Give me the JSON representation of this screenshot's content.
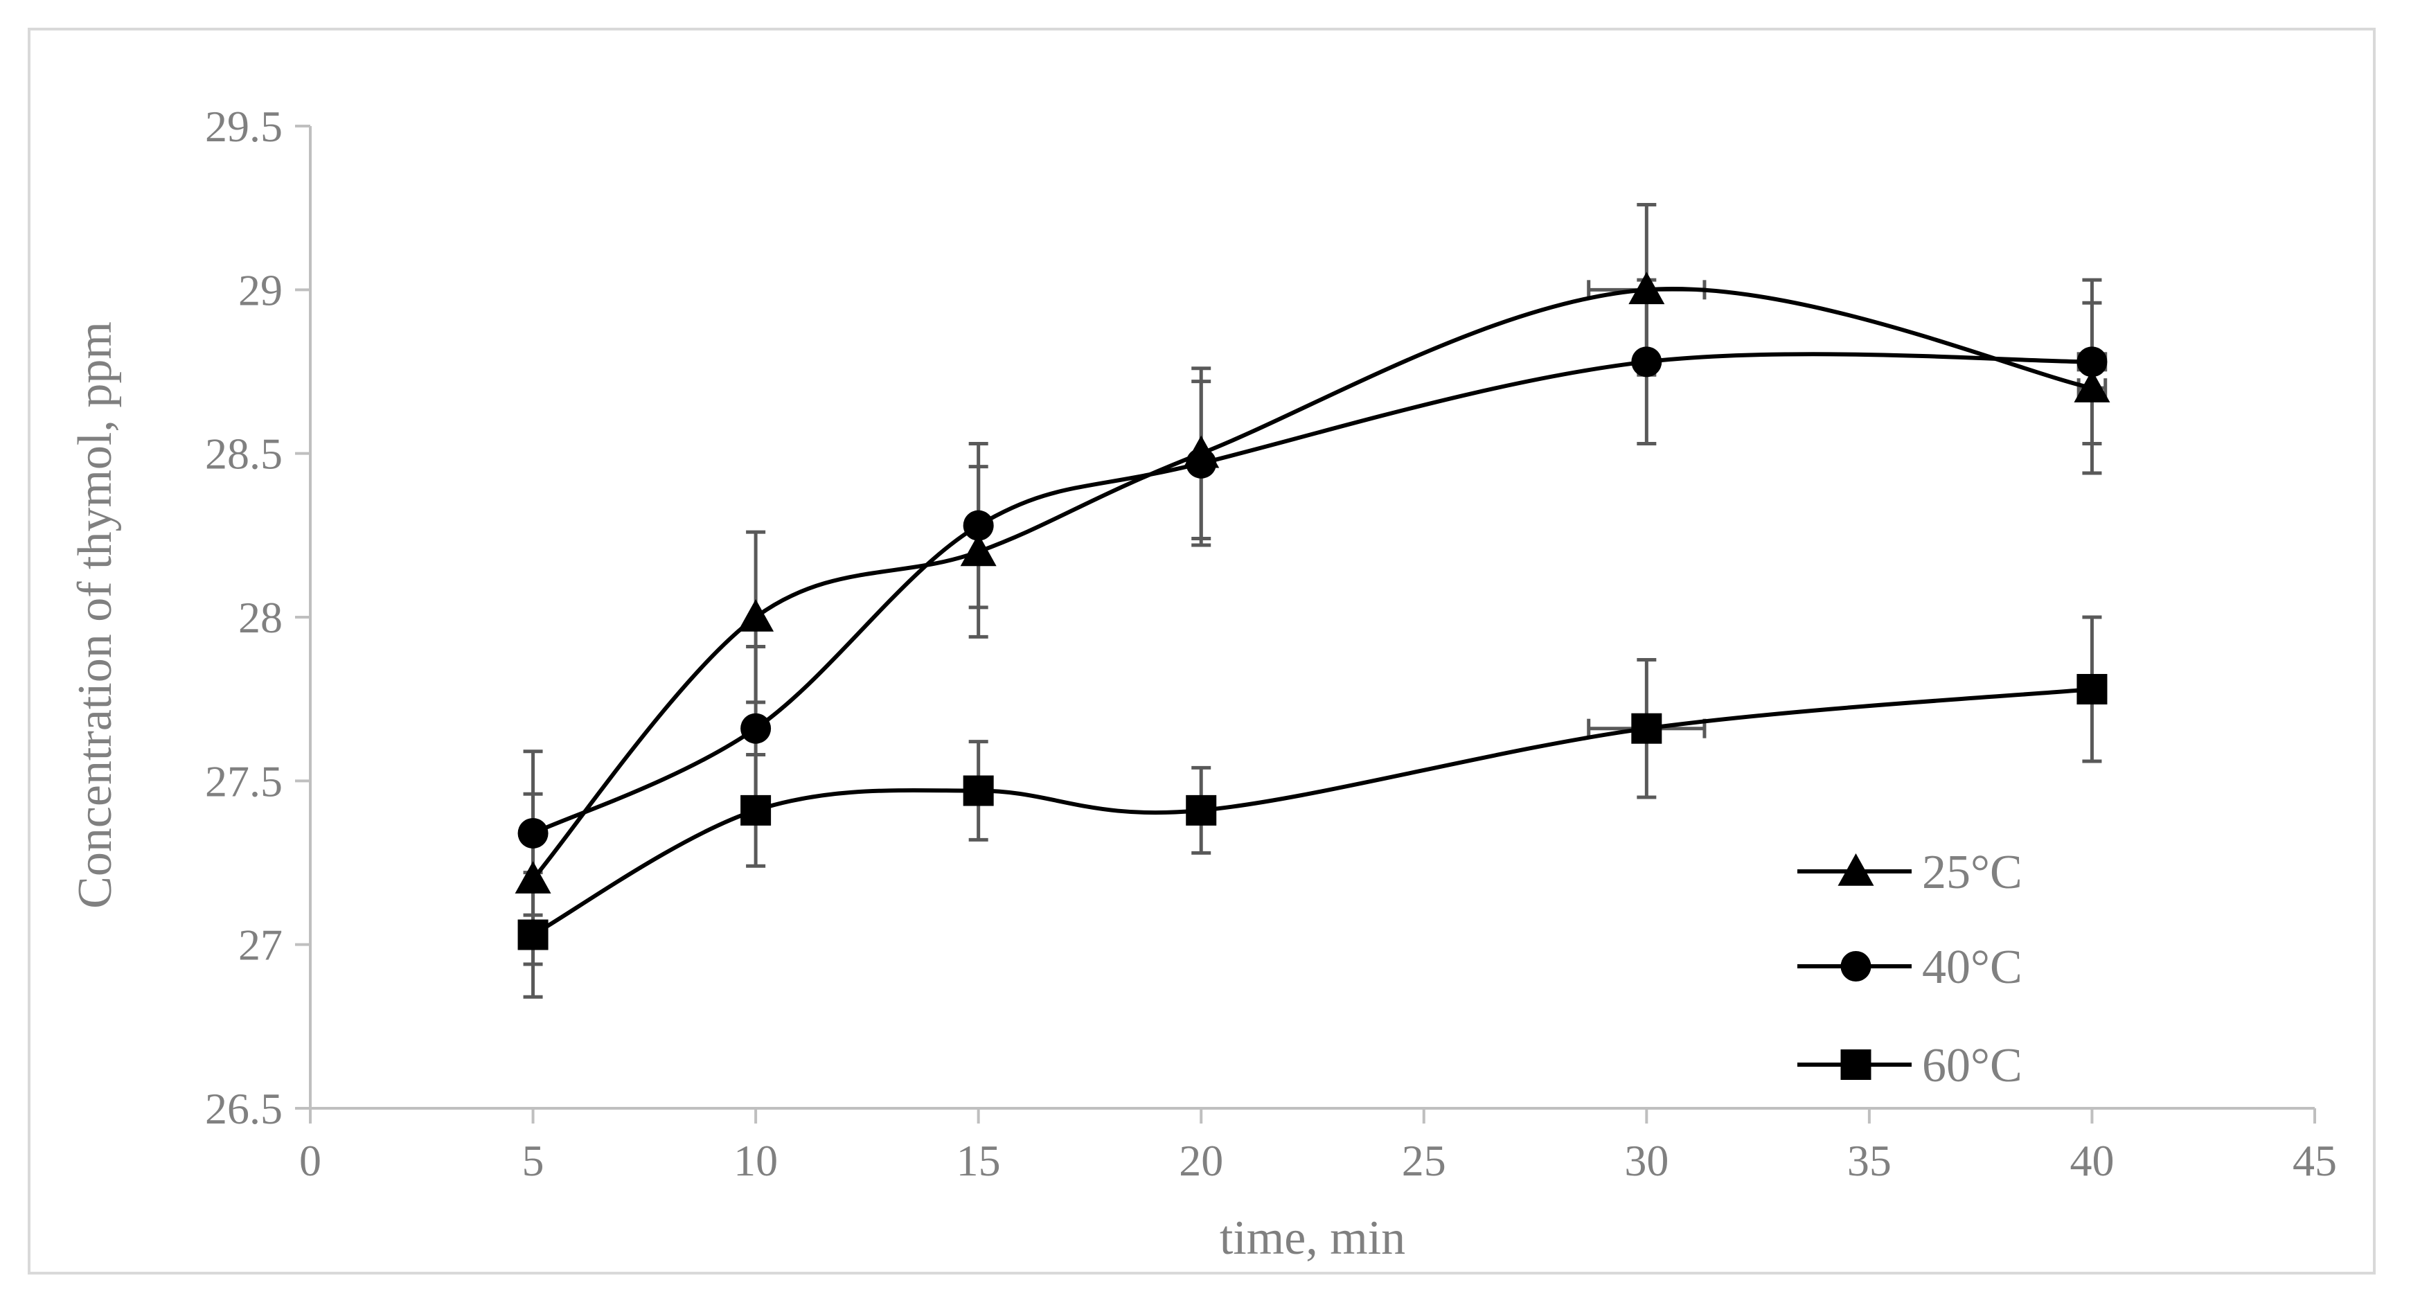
{
  "chart_data": {
    "type": "line",
    "title": "",
    "xlabel": "time, min",
    "ylabel": "Concentration of thymol, ppm",
    "xlim": [
      0,
      45
    ],
    "ylim": [
      26.5,
      29.5
    ],
    "xticks": [
      0,
      5,
      10,
      15,
      20,
      25,
      30,
      35,
      40,
      45
    ],
    "yticks": [
      26.5,
      27,
      27.5,
      28,
      28.5,
      29,
      29.5
    ],
    "xtick_labels": [
      "0",
      "5",
      "10",
      "15",
      "20",
      "25",
      "30",
      "35",
      "40",
      "45"
    ],
    "ytick_labels": [
      "26.5",
      "27",
      "27.5",
      "28",
      "28.5",
      "29",
      "29.5"
    ],
    "grid": false,
    "legend_position": "bottom-right",
    "series": [
      {
        "name": "25°C",
        "marker": "triangle",
        "color": "#000000",
        "x": [
          5,
          10,
          15,
          20,
          30,
          40
        ],
        "values": [
          27.2,
          28.0,
          28.2,
          28.5,
          29.0,
          28.7
        ],
        "y_error": [
          0.26,
          0.26,
          0.26,
          0.26,
          0.26,
          0.26
        ],
        "x_error": [
          0,
          0,
          0,
          0,
          1.3,
          0.3
        ]
      },
      {
        "name": "40°C",
        "marker": "circle",
        "color": "#000000",
        "x": [
          5,
          10,
          15,
          20,
          30,
          40
        ],
        "values": [
          27.34,
          27.66,
          28.28,
          28.47,
          28.78,
          28.78
        ],
        "y_error": [
          0.25,
          0.25,
          0.25,
          0.25,
          0.25,
          0.25
        ],
        "x_error": [
          0,
          0,
          0,
          0,
          0,
          0.3
        ]
      },
      {
        "name": "60°C",
        "marker": "square",
        "color": "#000000",
        "x": [
          5,
          10,
          15,
          20,
          30,
          40
        ],
        "values": [
          27.03,
          27.41,
          27.47,
          27.41,
          27.66,
          27.78
        ],
        "y_error": [
          0.19,
          0.17,
          0.15,
          0.13,
          0.21,
          0.22
        ],
        "x_error": [
          0,
          0,
          0,
          0,
          1.3,
          0.3
        ]
      }
    ]
  }
}
